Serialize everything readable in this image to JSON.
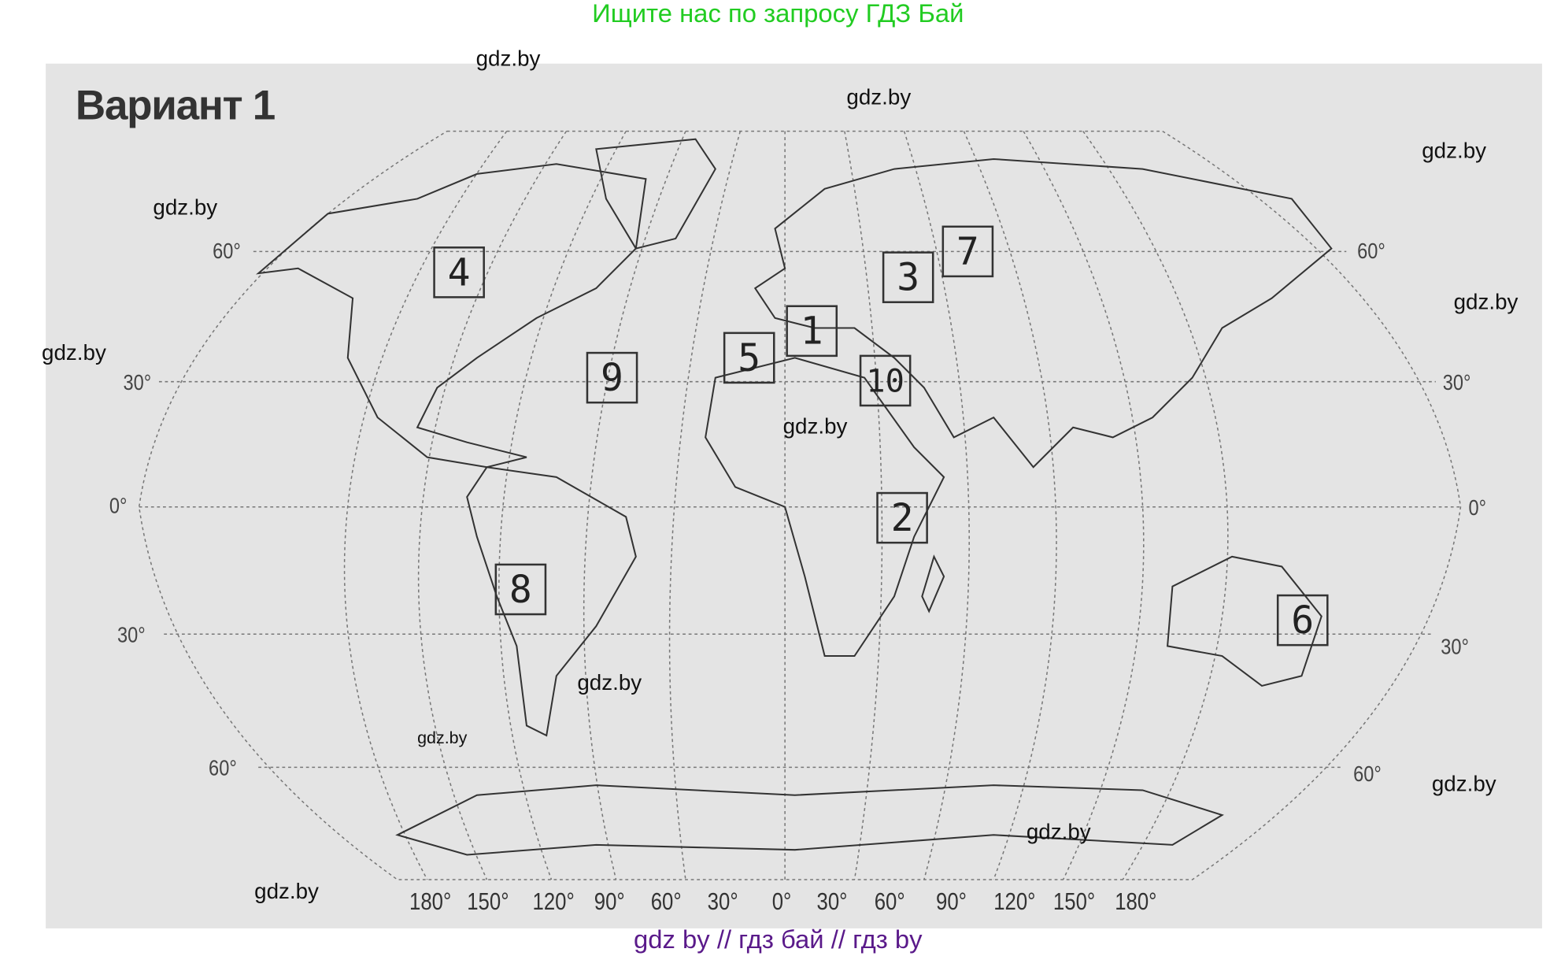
{
  "header_banner": "Ищите нас по запросу ГДЗ Бай",
  "footer_banner": "gdz by  //  гдз бай  //  гдз by",
  "title": "Вариант 1",
  "watermark": "gdz.by",
  "latitude_labels": {
    "n60": "60°",
    "n30": "30°",
    "eq": "0°",
    "s30": "30°",
    "s60": "60°"
  },
  "longitude_labels": [
    "180°",
    "150°",
    "120°",
    "90°",
    "60°",
    "30°",
    "0°",
    "30°",
    "60°",
    "90°",
    "120°",
    "150°",
    "180°"
  ],
  "markers": [
    "4",
    "3",
    "7",
    "1",
    "5",
    "9",
    "10",
    "2",
    "8",
    "6"
  ],
  "colors": {
    "banner_green": "#22cc22",
    "footer_purple": "#5a1a8a",
    "paper": "#e4e4e4"
  }
}
